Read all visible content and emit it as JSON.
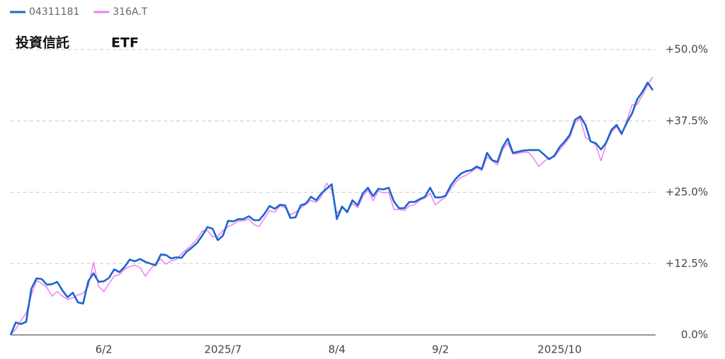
{
  "chart_data": {
    "type": "line",
    "annotations": [
      "投資信託",
      "ETF"
    ],
    "categories": [
      null,
      null,
      null,
      null,
      null,
      null,
      null,
      null,
      null,
      null,
      null,
      null,
      null,
      null,
      null,
      null,
      null,
      null,
      "6/2",
      null,
      null,
      null,
      null,
      null,
      null,
      null,
      null,
      null,
      null,
      null,
      null,
      null,
      null,
      null,
      null,
      null,
      null,
      null,
      null,
      null,
      null,
      "2025/7",
      null,
      null,
      null,
      null,
      null,
      null,
      null,
      null,
      null,
      null,
      null,
      null,
      null,
      null,
      null,
      null,
      null,
      null,
      null,
      null,
      null,
      "8/4",
      null,
      null,
      null,
      null,
      null,
      null,
      null,
      null,
      null,
      null,
      null,
      null,
      null,
      null,
      null,
      null,
      null,
      null,
      null,
      "9/2",
      null,
      null,
      null,
      null,
      null,
      null,
      null,
      null,
      null,
      null,
      null,
      null,
      null,
      null,
      null,
      null,
      null,
      null,
      null,
      null,
      null,
      null,
      "2025/10",
      null,
      null,
      null,
      null,
      null,
      null,
      null,
      null,
      null,
      null,
      null,
      null,
      null,
      null,
      null,
      null,
      null,
      null
    ],
    "series": [
      {
        "name": "04311181",
        "color": "#1a66cc",
        "values": [
          0,
          2.2,
          1.9,
          2.3,
          8.1,
          9.9,
          9.8,
          8.8,
          8.9,
          9.3,
          7.8,
          6.6,
          7.4,
          5.7,
          5.5,
          9.4,
          10.8,
          9.3,
          9.4,
          10.0,
          11.5,
          11.0,
          11.9,
          13.2,
          12.9,
          13.3,
          12.8,
          12.5,
          12.2,
          14.1,
          14.0,
          13.4,
          13.6,
          13.5,
          14.6,
          15.3,
          16.1,
          17.4,
          18.9,
          18.6,
          16.6,
          17.4,
          20.0,
          19.9,
          20.3,
          20.3,
          20.8,
          20.1,
          20.1,
          21.2,
          22.6,
          22.1,
          22.8,
          22.7,
          20.5,
          20.6,
          22.7,
          23.0,
          24.2,
          23.6,
          24.8,
          25.6,
          26.4,
          20.3,
          22.5,
          21.5,
          23.6,
          22.7,
          24.8,
          25.8,
          24.3,
          25.6,
          25.5,
          25.8,
          23.4,
          22.2,
          22.2,
          23.3,
          23.3,
          23.8,
          24.2,
          25.8,
          24.1,
          24.1,
          24.4,
          26.2,
          27.4,
          28.3,
          28.7,
          28.9,
          29.5,
          29.1,
          31.9,
          30.6,
          30.3,
          32.9,
          34.4,
          31.9,
          32.1,
          32.3,
          32.4,
          32.4,
          32.4,
          31.6,
          30.8,
          31.4,
          32.9,
          33.9,
          35.1,
          37.7,
          38.3,
          36.8,
          33.9,
          33.6,
          32.5,
          33.7,
          35.9,
          36.8,
          35.3,
          37.2,
          38.8,
          41.3,
          42.6,
          44.2,
          42.9
        ]
      },
      {
        "name": "316A.T",
        "color": "#f27cf2",
        "values": [
          0,
          1.0,
          2.5,
          3.8,
          7.0,
          9.5,
          9.0,
          8.3,
          6.8,
          7.6,
          6.8,
          6.2,
          6.5,
          7.0,
          7.3,
          8.5,
          12.7,
          8.5,
          7.6,
          9.0,
          10.3,
          10.6,
          11.5,
          12.0,
          12.2,
          11.8,
          10.3,
          11.5,
          12.6,
          13.3,
          12.4,
          13.0,
          13.2,
          14.2,
          15.0,
          15.8,
          16.8,
          18.2,
          18.3,
          17.2,
          17.2,
          18.3,
          19.0,
          19.4,
          20.0,
          20.0,
          20.3,
          19.3,
          19.0,
          20.4,
          21.8,
          21.5,
          22.6,
          22.3,
          21.0,
          21.5,
          22.2,
          22.9,
          23.6,
          23.2,
          24.2,
          26.6,
          25.4,
          21.3,
          22.2,
          21.8,
          23.0,
          22.3,
          24.2,
          25.4,
          23.5,
          25.2,
          24.9,
          25.0,
          22.0,
          22.0,
          21.8,
          22.6,
          22.8,
          23.6,
          24.0,
          24.8,
          22.8,
          23.5,
          24.2,
          25.6,
          26.8,
          27.6,
          28.0,
          28.6,
          29.3,
          28.8,
          31.2,
          30.5,
          29.8,
          32.5,
          33.6,
          31.7,
          31.8,
          32.0,
          32.0,
          30.9,
          29.5,
          30.4,
          31.0,
          31.2,
          32.4,
          33.5,
          34.7,
          37.2,
          38.0,
          34.6,
          34.0,
          33.3,
          30.5,
          33.5,
          35.5,
          36.5,
          35.0,
          37.6,
          40.3,
          40.4,
          42.0,
          43.8,
          45.2
        ]
      }
    ],
    "ylim": [
      0,
      50
    ],
    "yticks": [
      {
        "value": 0,
        "label": "0.0%"
      },
      {
        "value": 12.5,
        "label": "+12.5%"
      },
      {
        "value": 25,
        "label": "+25.0%"
      },
      {
        "value": 37.5,
        "label": "+37.5%"
      },
      {
        "value": 50,
        "label": "+50.0%"
      }
    ],
    "grid": true
  }
}
